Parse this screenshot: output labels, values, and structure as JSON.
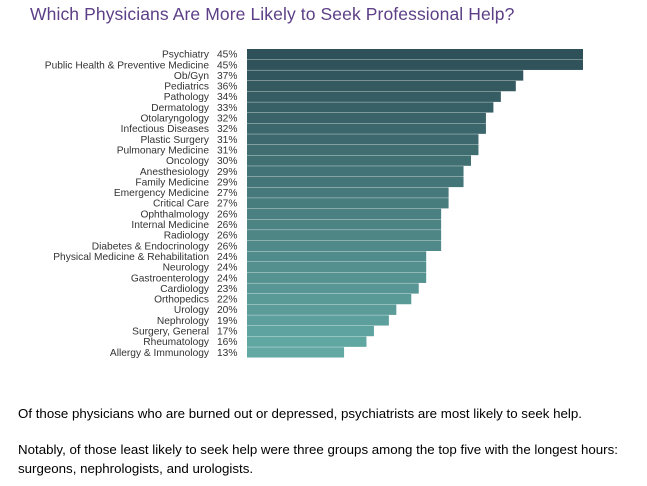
{
  "chart_data": {
    "type": "bar",
    "orientation": "horizontal",
    "title": "Which Physicians Are More Likely to Seek Professional Help?",
    "xlabel": "",
    "ylabel": "",
    "xlim": [
      0,
      45
    ],
    "grid": false,
    "categories": [
      "Psychiatry",
      "Public Health & Preventive Medicine",
      "Ob/Gyn",
      "Pediatrics",
      "Pathology",
      "Dermatology",
      "Otolaryngology",
      "Infectious Diseases",
      "Plastic Surgery",
      "Pulmonary Medicine",
      "Oncology",
      "Anesthesiology",
      "Family Medicine",
      "Emergency Medicine",
      "Critical Care",
      "Ophthalmology",
      "Internal Medicine",
      "Radiology",
      "Diabetes & Endocrinology",
      "Physical Medicine & Rehabilitation",
      "Neurology",
      "Gastroenterology",
      "Cardiology",
      "Orthopedics",
      "Urology",
      "Nephrology",
      "Surgery, General",
      "Rheumatology",
      "Allergy & Immunology"
    ],
    "values": [
      45,
      45,
      37,
      36,
      34,
      33,
      32,
      32,
      31,
      31,
      30,
      29,
      29,
      27,
      27,
      26,
      26,
      26,
      26,
      24,
      24,
      24,
      23,
      22,
      20,
      19,
      17,
      16,
      13
    ],
    "value_labels": [
      "45%",
      "45%",
      "37%",
      "36%",
      "34%",
      "33%",
      "32%",
      "32%",
      "31%",
      "31%",
      "30%",
      "29%",
      "29%",
      "27%",
      "27%",
      "26%",
      "26%",
      "26%",
      "26%",
      "24%",
      "24%",
      "24%",
      "23%",
      "22%",
      "20%",
      "19%",
      "17%",
      "16%",
      "13%"
    ],
    "bar_color_top": "#2e5058",
    "bar_color_bottom": "#62a9a4"
  },
  "colors": {
    "title": "#5c3f86",
    "label_text": "#333333",
    "body_text": "#000000"
  },
  "text": {
    "para1": "Of those physicians who are burned out or depressed, psychiatrists are most likely to seek help.",
    "para2": "Notably, of those least likely to seek help were three groups among the top five with the longest hours: surgeons, nephrologists, and urologists."
  }
}
